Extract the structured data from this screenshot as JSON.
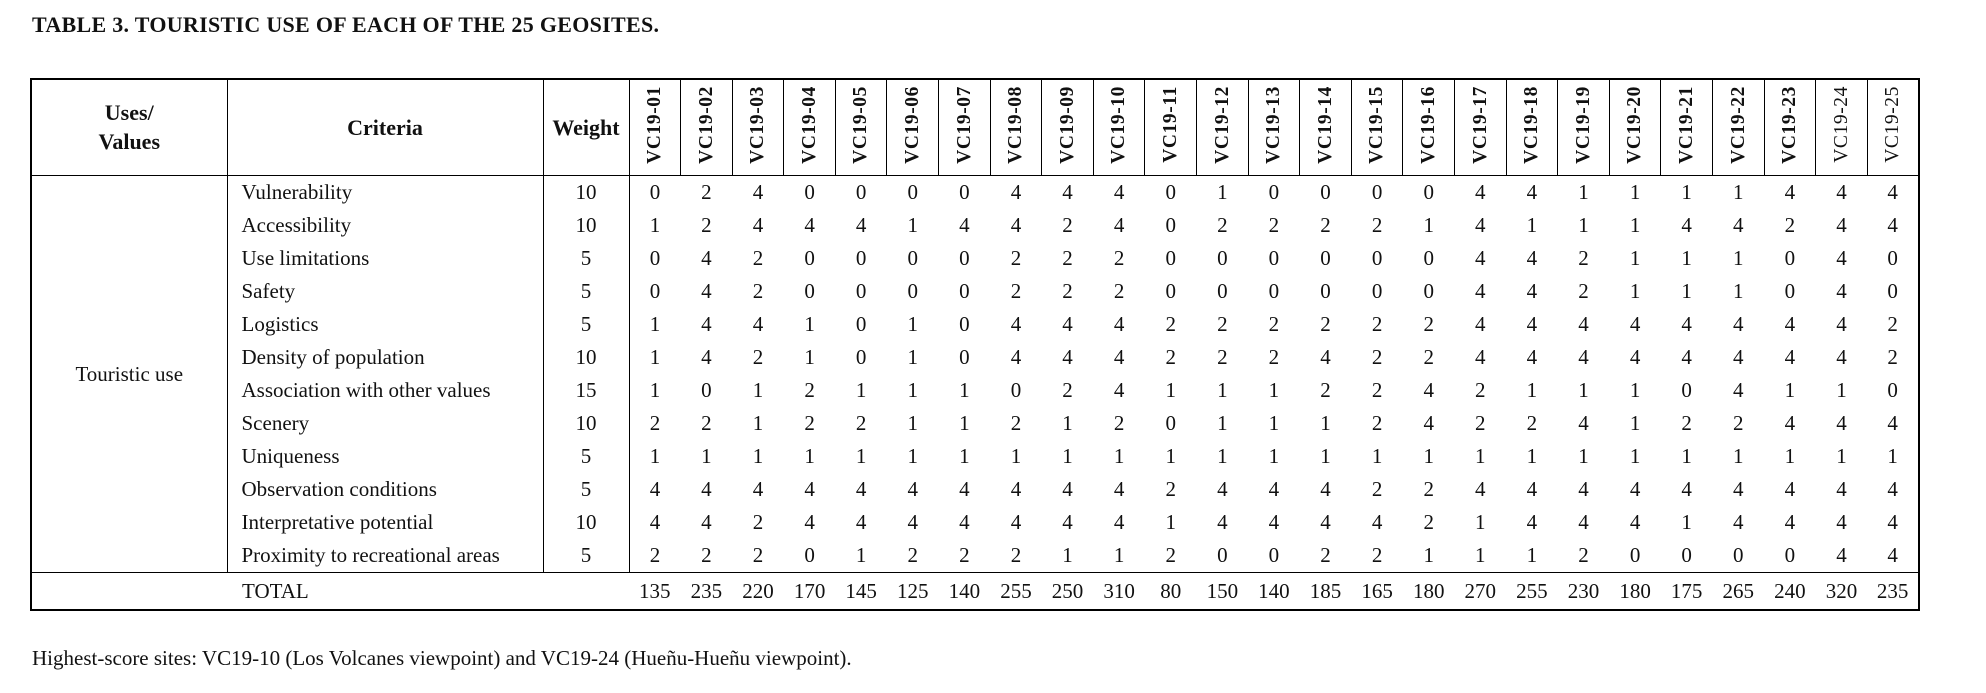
{
  "title": "TABLE 3. TOURISTIC USE OF EACH OF THE 25 GEOSITES.",
  "footnote": "Highest-score sites: VC19-10 (Los Volcanes viewpoint) and VC19-24 (Hueñu-Hueñu viewpoint).",
  "table": {
    "headers": {
      "uses_values": "Uses/\nValues",
      "criteria": "Criteria",
      "weight": "Weight"
    },
    "site_columns": [
      "VC19-01",
      "VC19-02",
      "VC19-03",
      "VC19-04",
      "VC19-05",
      "VC19-06",
      "VC19-07",
      "VC19-08",
      "VC19-09",
      "VC19-10",
      "VC19-11",
      "VC19-12",
      "VC19-13",
      "VC19-14",
      "VC19-15",
      "VC19-16",
      "VC19-17",
      "VC19-18",
      "VC19-19",
      "VC19-20",
      "VC19-21",
      "VC19-22",
      "VC19-23",
      "VC19-24",
      "VC19-25"
    ],
    "light_site_columns": [
      "VC19-24",
      "VC19-25"
    ],
    "group_label": "Touristic use",
    "rows": [
      {
        "criteria": "Vulnerability",
        "weight": "10",
        "values": [
          0,
          2,
          4,
          0,
          0,
          0,
          0,
          4,
          4,
          4,
          0,
          1,
          0,
          0,
          0,
          0,
          4,
          4,
          1,
          1,
          1,
          1,
          4,
          4,
          4
        ]
      },
      {
        "criteria": "Accessibility",
        "weight": "10",
        "values": [
          1,
          2,
          4,
          4,
          4,
          1,
          4,
          4,
          2,
          4,
          0,
          2,
          2,
          2,
          2,
          1,
          4,
          1,
          1,
          1,
          4,
          4,
          2,
          4,
          4
        ]
      },
      {
        "criteria": "Use limitations",
        "weight": "5",
        "values": [
          0,
          4,
          2,
          0,
          0,
          0,
          0,
          2,
          2,
          2,
          0,
          0,
          0,
          0,
          0,
          0,
          4,
          4,
          2,
          1,
          1,
          1,
          0,
          4,
          0
        ]
      },
      {
        "criteria": "Safety",
        "weight": "5",
        "values": [
          0,
          4,
          2,
          0,
          0,
          0,
          0,
          2,
          2,
          2,
          0,
          0,
          0,
          0,
          0,
          0,
          4,
          4,
          2,
          1,
          1,
          1,
          0,
          4,
          0
        ]
      },
      {
        "criteria": "Logistics",
        "weight": "5",
        "values": [
          1,
          4,
          4,
          1,
          0,
          1,
          0,
          4,
          4,
          4,
          2,
          2,
          2,
          2,
          2,
          2,
          4,
          4,
          4,
          4,
          4,
          4,
          4,
          4,
          2
        ]
      },
      {
        "criteria": "Density of population",
        "weight": "10",
        "values": [
          1,
          4,
          2,
          1,
          0,
          1,
          0,
          4,
          4,
          4,
          2,
          2,
          2,
          4,
          2,
          2,
          4,
          4,
          4,
          4,
          4,
          4,
          4,
          4,
          2
        ]
      },
      {
        "criteria": "Association with other values",
        "weight": "15",
        "values": [
          1,
          0,
          1,
          2,
          1,
          1,
          1,
          0,
          2,
          4,
          1,
          1,
          1,
          2,
          2,
          4,
          2,
          1,
          1,
          1,
          0,
          4,
          1,
          1,
          0
        ]
      },
      {
        "criteria": "Scenery",
        "weight": "10",
        "values": [
          2,
          2,
          1,
          2,
          2,
          1,
          1,
          2,
          1,
          2,
          0,
          1,
          1,
          1,
          2,
          4,
          2,
          2,
          4,
          1,
          2,
          2,
          4,
          4,
          4
        ]
      },
      {
        "criteria": "Uniqueness",
        "weight": "5",
        "values": [
          1,
          1,
          1,
          1,
          1,
          1,
          1,
          1,
          1,
          1,
          1,
          1,
          1,
          1,
          1,
          1,
          1,
          1,
          1,
          1,
          1,
          1,
          1,
          1,
          1
        ]
      },
      {
        "criteria": "Observation conditions",
        "weight": "5",
        "values": [
          4,
          4,
          4,
          4,
          4,
          4,
          4,
          4,
          4,
          4,
          2,
          4,
          4,
          4,
          2,
          2,
          4,
          4,
          4,
          4,
          4,
          4,
          4,
          4,
          4
        ]
      },
      {
        "criteria": "Interpretative potential",
        "weight": "10",
        "values": [
          4,
          4,
          2,
          4,
          4,
          4,
          4,
          4,
          4,
          4,
          1,
          4,
          4,
          4,
          4,
          2,
          1,
          4,
          4,
          4,
          1,
          4,
          4,
          4,
          4
        ]
      },
      {
        "criteria": "Proximity to recreational areas",
        "weight": "5",
        "values": [
          2,
          2,
          2,
          0,
          1,
          2,
          2,
          2,
          1,
          1,
          2,
          0,
          0,
          2,
          2,
          1,
          1,
          1,
          2,
          0,
          0,
          0,
          0,
          4,
          4
        ]
      }
    ],
    "total": {
      "label": "TOTAL",
      "values": [
        135,
        235,
        220,
        170,
        145,
        125,
        140,
        255,
        250,
        310,
        80,
        150,
        140,
        185,
        165,
        180,
        270,
        255,
        230,
        180,
        175,
        265,
        240,
        320,
        235
      ]
    }
  }
}
